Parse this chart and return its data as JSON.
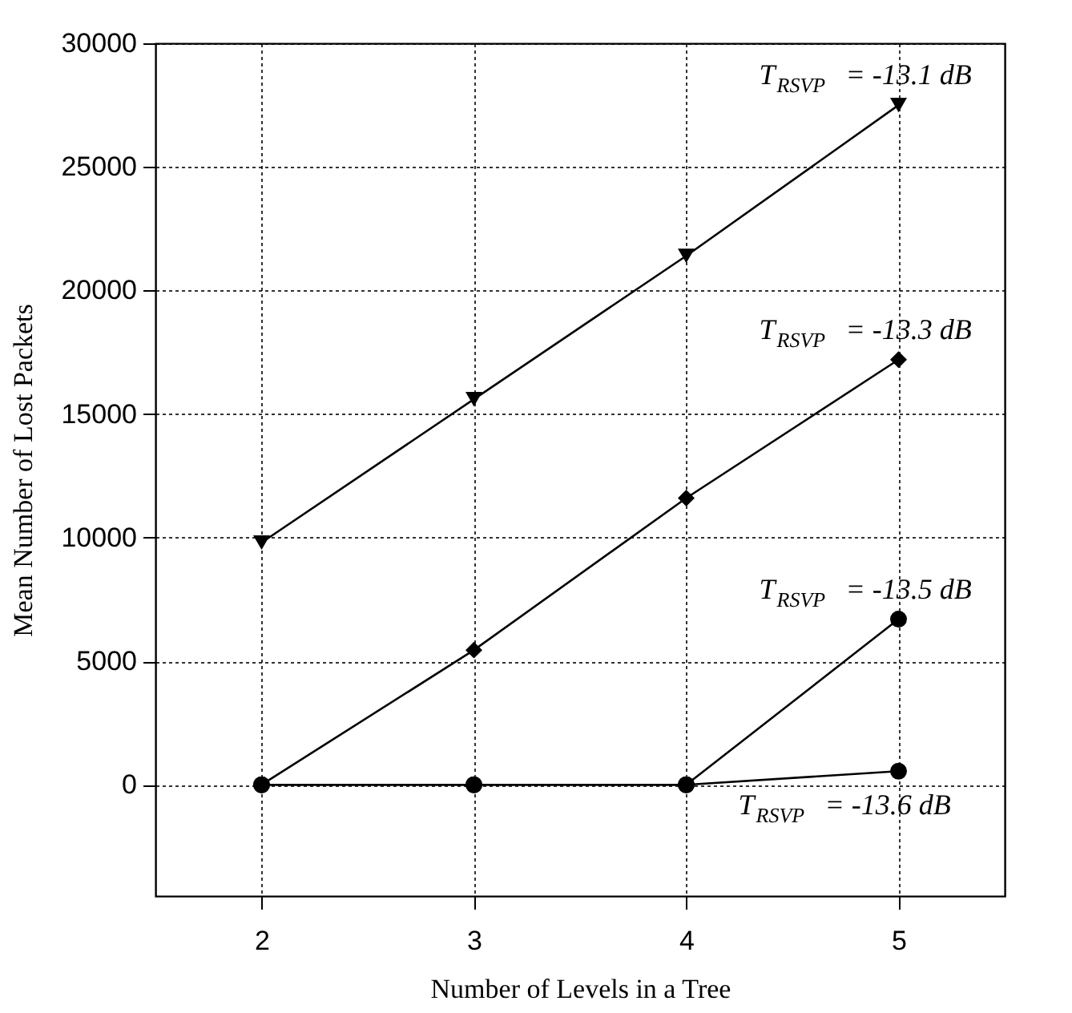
{
  "chart_data": {
    "type": "line",
    "xlabel": "Number of Levels in a Tree",
    "ylabel": "Mean Number of Lost Packets",
    "x": [
      2,
      3,
      4,
      5
    ],
    "xlim": [
      1.5,
      5.5
    ],
    "xticks": [
      2,
      3,
      4,
      5
    ],
    "ylim": [
      -4500,
      30000
    ],
    "yticks": [
      0,
      5000,
      10000,
      15000,
      20000,
      25000,
      30000
    ],
    "grid": true,
    "line_style": "solid",
    "series": [
      {
        "name": "T$_{RSVP}$ = -13.1 dB",
        "color": "#000000",
        "marker": "triangle",
        "values": [
          9800,
          15600,
          21400,
          27500
        ]
      },
      {
        "name": "T$_{RSVP}$ = -13.3 dB",
        "color": "#000000",
        "marker": "diamond",
        "values": [
          0,
          5450,
          11600,
          17200
        ]
      },
      {
        "name": "T$_{RSVP}$ = -13.5 dB",
        "color": "#000000",
        "marker": "circle",
        "values": [
          0,
          0,
          0,
          6700
        ]
      },
      {
        "name": "T$_{RSVP}$ = -13.6 dB",
        "color": "#000000",
        "marker": "circle",
        "values": [
          0,
          0,
          0,
          550
        ]
      }
    ]
  }
}
